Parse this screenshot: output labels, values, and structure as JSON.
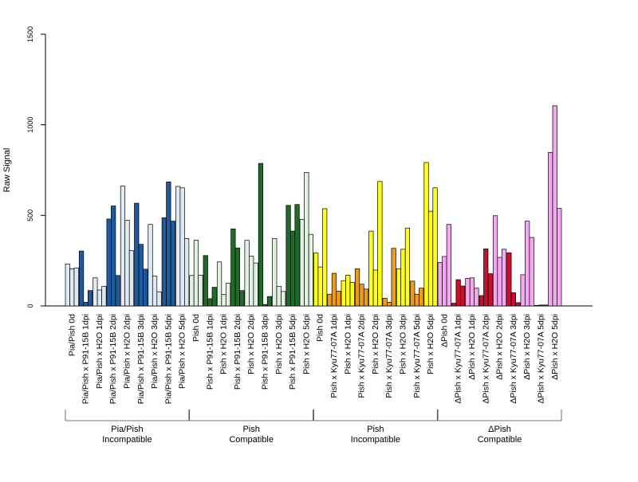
{
  "chart_data": {
    "type": "bar",
    "title": "",
    "xlabel": "",
    "ylabel": "Raw Signal",
    "ylim": [
      0,
      1500
    ],
    "yticks": [
      0,
      500,
      1000,
      1500
    ],
    "grid": false,
    "groups": [
      {
        "name_lines": [
          "Pia/Pish",
          "Incompatible"
        ],
        "color_light": "#dfe9f5",
        "color_dark": "#1f5a9e",
        "categories": [
          {
            "label": "Pia/Pish 0d",
            "shade": "light",
            "values": [
              232,
              205,
              210
            ]
          },
          {
            "label": "Pia/Pish x P91-15B 1dpi",
            "shade": "dark",
            "values": [
              303,
              20,
              85
            ]
          },
          {
            "label": "Pia/Pish x H2O 1dpi",
            "shade": "light",
            "values": [
              155,
              88,
              108
            ]
          },
          {
            "label": "Pia/Pish x P91-15B 2dpi",
            "shade": "dark",
            "values": [
              480,
              552,
              168
            ]
          },
          {
            "label": "Pia/Pish x H2O 2dpi",
            "shade": "light",
            "values": [
              662,
              473,
              305
            ]
          },
          {
            "label": "Pia/Pish x P91-15B 3dpi",
            "shade": "dark",
            "values": [
              567,
              340,
              203
            ]
          },
          {
            "label": "Pia/Pish x H2O 3dpi",
            "shade": "light",
            "values": [
              450,
              165,
              78
            ]
          },
          {
            "label": "Pia/Pish x P91-15B 5dpi",
            "shade": "dark",
            "values": [
              487,
              685,
              468
            ]
          },
          {
            "label": "Pia/Pish x H2O 5dpi",
            "shade": "light",
            "values": [
              660,
              652,
              372
            ]
          }
        ]
      },
      {
        "name_lines": [
          "Pish",
          "Compatible"
        ],
        "color_light": "#e2f2e2",
        "color_dark": "#1f6b2a",
        "categories": [
          {
            "label": "Pish 0d",
            "shade": "light",
            "values": [
              168,
              363,
              170
            ]
          },
          {
            "label": "Pish x P91-15B 1dpi",
            "shade": "dark",
            "values": [
              278,
              40,
              103
            ]
          },
          {
            "label": "Pish x H2O 1dpi",
            "shade": "light",
            "values": [
              243,
              63,
              125
            ]
          },
          {
            "label": "Pish x P91-15B 2dpi",
            "shade": "dark",
            "values": [
              425,
              320,
              85
            ]
          },
          {
            "label": "Pish x H2O 2dpi",
            "shade": "light",
            "values": [
              362,
              275,
              237
            ]
          },
          {
            "label": "Pish x P91-15B 3dpi",
            "shade": "dark",
            "values": [
              787,
              8,
              52
            ]
          },
          {
            "label": "Pish x H2O 3dpi",
            "shade": "light",
            "values": [
              372,
              108,
              80
            ]
          },
          {
            "label": "Pish x P91-15B 5dpi",
            "shade": "dark",
            "values": [
              555,
              413,
              560
            ]
          },
          {
            "label": "Pish x H2O 5dpi",
            "shade": "light",
            "values": [
              478,
              737,
              395
            ]
          }
        ]
      },
      {
        "name_lines": [
          "Pish",
          "Incompatible"
        ],
        "color_light": "#ffff1a",
        "color_dark": "#ee9a1a",
        "categories": [
          {
            "label": "Pish 0d",
            "shade": "light",
            "values": [
              292,
              215,
              537
            ]
          },
          {
            "label": "Pish x Kyu77-07A 1dpi",
            "shade": "dark",
            "values": [
              65,
              180,
              82
            ]
          },
          {
            "label": "Pish x H2O 1dpi",
            "shade": "light",
            "values": [
              140,
              170,
              130
            ]
          },
          {
            "label": "Pish x Kyu77-07A 2dpi",
            "shade": "dark",
            "values": [
              205,
              120,
              93
            ]
          },
          {
            "label": "Pish x H2O 2dpi",
            "shade": "light",
            "values": [
              413,
              198,
              687
            ]
          },
          {
            "label": "Pish x Kyu77-07A 3dpi",
            "shade": "dark",
            "values": [
              42,
              20,
              318
            ]
          },
          {
            "label": "Pish x H2O 3dpi",
            "shade": "light",
            "values": [
              205,
              313,
              430
            ]
          },
          {
            "label": "Pish x Kyu77-07A 5dpi",
            "shade": "dark",
            "values": [
              137,
              65,
              98
            ]
          },
          {
            "label": "Pish x H2O 5dpi",
            "shade": "light",
            "values": [
              792,
              523,
              652
            ]
          }
        ]
      },
      {
        "name_lines": [
          "ΔPish",
          "Compatible"
        ],
        "color_light": "#f4a8f0",
        "color_dark": "#c8102e",
        "categories": [
          {
            "label": "ΔPish 0d",
            "shade": "light",
            "values": [
              240,
              273,
              450
            ]
          },
          {
            "label": "ΔPish x Kyu77-07A 1dpi",
            "shade": "dark",
            "values": [
              15,
              145,
              110
            ]
          },
          {
            "label": "ΔPish x H2O 1dpi",
            "shade": "light",
            "values": [
              152,
              155,
              98
            ]
          },
          {
            "label": "ΔPish x Kyu77-07A 2dpi",
            "shade": "dark",
            "values": [
              57,
              315,
              178
            ]
          },
          {
            "label": "ΔPish x H2O 2dpi",
            "shade": "light",
            "values": [
              498,
              268,
              313
            ]
          },
          {
            "label": "ΔPish x Kyu77-07A 3dpi",
            "shade": "dark",
            "values": [
              293,
              73,
              18
            ]
          },
          {
            "label": "ΔPish x H2O 3dpi",
            "shade": "light",
            "values": [
              172,
              468,
              378
            ]
          },
          {
            "label": "ΔPish x Kyu77-07A 5dpi",
            "shade": "dark",
            "values": [
              3,
              5,
              5
            ]
          },
          {
            "label": "ΔPish x H2O 5dpi",
            "shade": "light",
            "values": [
              847,
              1105,
              538
            ]
          }
        ]
      }
    ]
  }
}
